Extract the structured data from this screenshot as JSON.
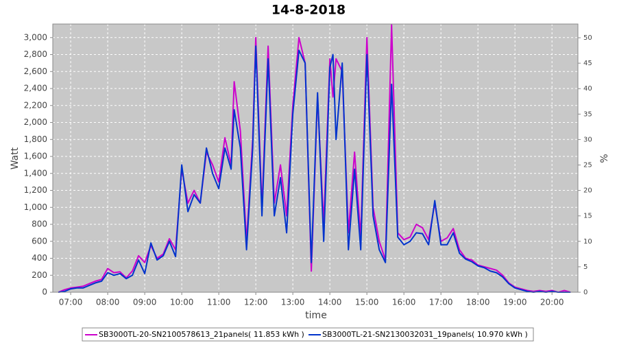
{
  "chart_data": {
    "type": "line",
    "title": "14-8-2018",
    "x_label": "time",
    "y_label": "Watt",
    "y2_label": "%",
    "x": [
      "06:40",
      "06:50",
      "07:00",
      "07:10",
      "07:20",
      "07:30",
      "07:40",
      "07:50",
      "08:00",
      "08:10",
      "08:20",
      "08:30",
      "08:40",
      "08:50",
      "09:00",
      "09:10",
      "09:20",
      "09:30",
      "09:40",
      "09:50",
      "10:00",
      "10:10",
      "10:20",
      "10:30",
      "10:40",
      "10:50",
      "11:00",
      "11:10",
      "11:20",
      "11:25",
      "11:35",
      "11:45",
      "11:55",
      "12:00",
      "12:10",
      "12:20",
      "12:30",
      "12:40",
      "12:50",
      "13:00",
      "13:10",
      "13:20",
      "13:30",
      "13:40",
      "13:50",
      "14:00",
      "14:05",
      "14:10",
      "14:20",
      "14:30",
      "14:40",
      "14:50",
      "15:00",
      "15:10",
      "15:20",
      "15:30",
      "15:40",
      "15:50",
      "16:00",
      "16:10",
      "16:20",
      "16:30",
      "16:40",
      "16:50",
      "17:00",
      "17:10",
      "17:20",
      "17:30",
      "17:40",
      "17:50",
      "18:00",
      "18:10",
      "18:20",
      "18:30",
      "18:40",
      "18:50",
      "19:00",
      "19:10",
      "19:20",
      "19:30",
      "19:40",
      "19:50",
      "20:00",
      "20:10",
      "20:20",
      "20:30"
    ],
    "series": [
      {
        "name": "SB3000TL-20-SN2100578613_21panels( 11.853 kWh )",
        "color": "#cc00cc",
        "values": [
          0,
          30,
          50,
          60,
          70,
          100,
          130,
          150,
          280,
          230,
          240,
          170,
          250,
          430,
          350,
          550,
          400,
          450,
          630,
          500,
          1450,
          1050,
          1200,
          1050,
          1650,
          1500,
          1300,
          1820,
          1500,
          2480,
          1900,
          600,
          1800,
          3000,
          1000,
          2900,
          1050,
          1500,
          900,
          2200,
          3000,
          2700,
          250,
          2300,
          800,
          2750,
          2300,
          2750,
          2600,
          700,
          1650,
          650,
          3000,
          1000,
          600,
          380,
          3150,
          700,
          620,
          650,
          800,
          760,
          620,
          1050,
          600,
          640,
          750,
          500,
          400,
          380,
          320,
          300,
          280,
          260,
          200,
          110,
          60,
          40,
          20,
          10,
          20,
          10,
          20,
          0,
          20,
          0
        ]
      },
      {
        "name": "SB3000TL-21-SN2130032031_19panels( 10.970 kWh )",
        "color": "#0033cc",
        "values": [
          0,
          10,
          40,
          50,
          50,
          80,
          110,
          130,
          230,
          200,
          220,
          160,
          200,
          380,
          220,
          580,
          380,
          430,
          600,
          420,
          1500,
          950,
          1150,
          1050,
          1700,
          1400,
          1220,
          1700,
          1450,
          2150,
          1700,
          500,
          1700,
          2900,
          900,
          2750,
          900,
          1350,
          700,
          2100,
          2850,
          2700,
          350,
          2350,
          600,
          2650,
          2800,
          1800,
          2700,
          500,
          1450,
          500,
          2800,
          900,
          500,
          350,
          2450,
          650,
          560,
          600,
          700,
          690,
          560,
          1080,
          560,
          560,
          700,
          460,
          390,
          360,
          310,
          290,
          250,
          230,
          180,
          100,
          50,
          30,
          10,
          0,
          10,
          0,
          10,
          0,
          0,
          0
        ]
      }
    ],
    "xlim": [
      "06:31",
      "20:42"
    ],
    "xticks": [
      "07:00",
      "08:00",
      "09:00",
      "10:00",
      "11:00",
      "12:00",
      "13:00",
      "14:00",
      "15:00",
      "16:00",
      "17:00",
      "18:00",
      "19:00",
      "20:00"
    ],
    "ylim": [
      0,
      3160
    ],
    "yticks": [
      0,
      200,
      400,
      600,
      800,
      {
        "value": 1000,
        "label": "1,000"
      },
      {
        "value": 1200,
        "label": "1,200"
      },
      {
        "value": 1400,
        "label": "1,400"
      },
      {
        "value": 1600,
        "label": "1,600"
      },
      {
        "value": 1800,
        "label": "1,800"
      },
      {
        "value": 2000,
        "label": "2,000"
      },
      {
        "value": 2200,
        "label": "2,200"
      },
      {
        "value": 2400,
        "label": "2,400"
      },
      {
        "value": 2600,
        "label": "2,600"
      },
      {
        "value": 2800,
        "label": "2,800"
      },
      {
        "value": 3000,
        "label": "3,000"
      }
    ],
    "y2lim": [
      0,
      52.7
    ],
    "y2ticks": [
      0,
      5,
      10,
      15,
      20,
      25,
      30,
      35,
      40,
      45,
      50
    ],
    "grid": true,
    "legend": "bottom",
    "plot_background": "#c8c8c8"
  }
}
